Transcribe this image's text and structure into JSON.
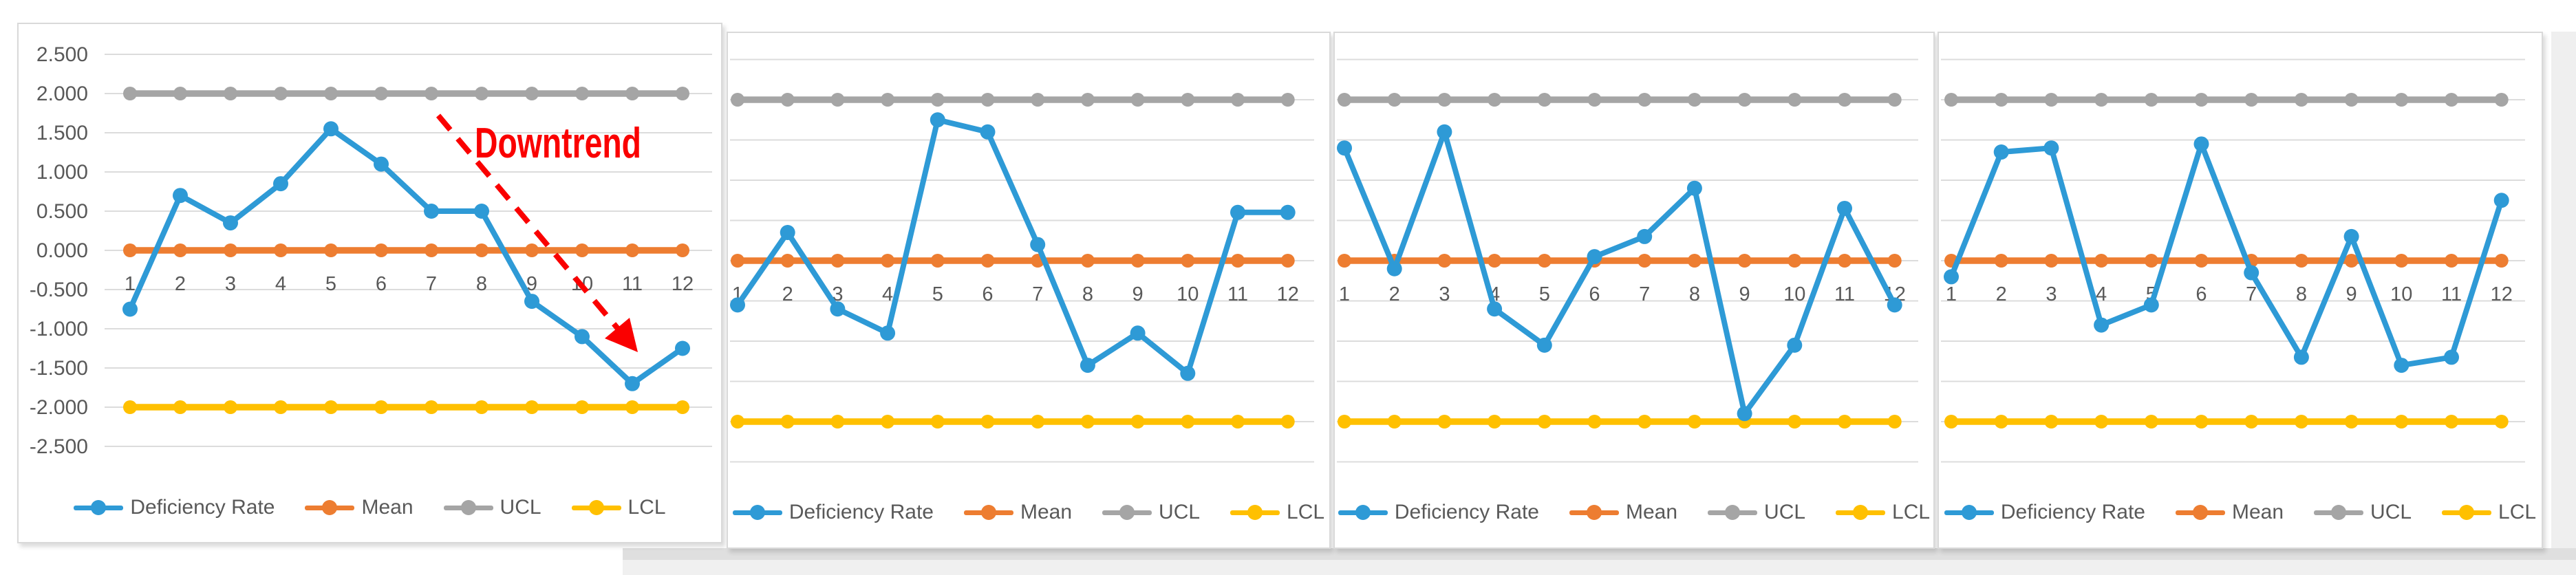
{
  "app": {
    "description": "Four Excel-style statistical process control charts (Deficiency Rate run charts with Mean, UCL, LCL reference lines)",
    "background_color": "#ffffff",
    "sheet_band_color": "#dfdfdf",
    "sheet_band_light_color": "#f0f0f0"
  },
  "colors": {
    "deficiency_rate": "#2e9ad6",
    "mean": "#ed7d31",
    "ucl": "#a5a5a5",
    "lcl": "#ffc000",
    "gridline": "#dcdcdc",
    "axis_text": "#595959",
    "annotation_red": "#fa0000",
    "panel_border": "#d9d9d9"
  },
  "legend": {
    "items": [
      {
        "label": "Deficiency Rate",
        "color": "#2e9ad6"
      },
      {
        "label": "Mean",
        "color": "#ed7d31"
      },
      {
        "label": "UCL",
        "color": "#a5a5a5"
      },
      {
        "label": "LCL",
        "color": "#ffc000"
      }
    ]
  },
  "annotation": {
    "text": "Downtrend",
    "color": "#fa0000"
  },
  "chart_data": [
    {
      "type": "line",
      "title": "",
      "categories": [
        1,
        2,
        3,
        4,
        5,
        6,
        7,
        8,
        9,
        10,
        11,
        12
      ],
      "series": [
        {
          "name": "Deficiency Rate",
          "color": "#2e9ad6",
          "values": [
            -0.75,
            0.7,
            0.35,
            0.85,
            1.55,
            1.1,
            0.5,
            0.5,
            -0.65,
            -1.1,
            -1.7,
            -1.25
          ]
        },
        {
          "name": "Mean",
          "color": "#ed7d31",
          "values": [
            0,
            0,
            0,
            0,
            0,
            0,
            0,
            0,
            0,
            0,
            0,
            0
          ]
        },
        {
          "name": "UCL",
          "color": "#a5a5a5",
          "values": [
            2,
            2,
            2,
            2,
            2,
            2,
            2,
            2,
            2,
            2,
            2,
            2
          ]
        },
        {
          "name": "LCL",
          "color": "#ffc000",
          "values": [
            -2,
            -2,
            -2,
            -2,
            -2,
            -2,
            -2,
            -2,
            -2,
            -2,
            -2,
            -2
          ]
        }
      ],
      "ylim": [
        -2.5,
        2.5
      ],
      "ytick_step": 0.5,
      "yticks": [
        "2.500",
        "2.000",
        "1.500",
        "1.000",
        "0.500",
        "0.000",
        "-0.500",
        "-1.000",
        "-1.500",
        "-2.000",
        "-2.500"
      ],
      "y_axis_labels": true,
      "grid": true,
      "legend_position": "bottom",
      "legend": [
        "Deficiency Rate",
        "Mean",
        "UCL",
        "LCL"
      ],
      "annotation": "Downtrend"
    },
    {
      "type": "line",
      "title": "",
      "categories": [
        1,
        2,
        3,
        4,
        5,
        6,
        7,
        8,
        9,
        10,
        11,
        12
      ],
      "series": [
        {
          "name": "Deficiency Rate",
          "color": "#2e9ad6",
          "values": [
            -0.55,
            0.35,
            -0.6,
            -0.9,
            1.75,
            1.6,
            0.2,
            -1.3,
            -0.9,
            -1.4,
            0.6,
            0.6
          ]
        },
        {
          "name": "Mean",
          "color": "#ed7d31",
          "values": [
            0,
            0,
            0,
            0,
            0,
            0,
            0,
            0,
            0,
            0,
            0,
            0
          ]
        },
        {
          "name": "UCL",
          "color": "#a5a5a5",
          "values": [
            2,
            2,
            2,
            2,
            2,
            2,
            2,
            2,
            2,
            2,
            2,
            2
          ]
        },
        {
          "name": "LCL",
          "color": "#ffc000",
          "values": [
            -2,
            -2,
            -2,
            -2,
            -2,
            -2,
            -2,
            -2,
            -2,
            -2,
            -2,
            -2
          ]
        }
      ],
      "ylim": [
        -2.5,
        2.5
      ],
      "ytick_step": 0.5,
      "yticks": [],
      "y_axis_labels": false,
      "grid": true,
      "legend_position": "bottom",
      "legend": [
        "Deficiency Rate",
        "Mean",
        "UCL",
        "LCL"
      ],
      "annotation": null
    },
    {
      "type": "line",
      "title": "",
      "categories": [
        1,
        2,
        3,
        4,
        5,
        6,
        7,
        8,
        9,
        10,
        11,
        12
      ],
      "series": [
        {
          "name": "Deficiency Rate",
          "color": "#2e9ad6",
          "values": [
            1.4,
            -0.1,
            1.6,
            -0.6,
            -1.05,
            0.05,
            0.3,
            0.9,
            -1.9,
            -1.05,
            0.65,
            -0.55
          ]
        },
        {
          "name": "Mean",
          "color": "#ed7d31",
          "values": [
            0,
            0,
            0,
            0,
            0,
            0,
            0,
            0,
            0,
            0,
            0,
            0
          ]
        },
        {
          "name": "UCL",
          "color": "#a5a5a5",
          "values": [
            2,
            2,
            2,
            2,
            2,
            2,
            2,
            2,
            2,
            2,
            2,
            2
          ]
        },
        {
          "name": "LCL",
          "color": "#ffc000",
          "values": [
            -2,
            -2,
            -2,
            -2,
            -2,
            -2,
            -2,
            -2,
            -2,
            -2,
            -2,
            -2
          ]
        }
      ],
      "ylim": [
        -2.5,
        2.5
      ],
      "ytick_step": 0.5,
      "yticks": [],
      "y_axis_labels": false,
      "grid": true,
      "legend_position": "bottom",
      "legend": [
        "Deficiency Rate",
        "Mean",
        "UCL",
        "LCL"
      ],
      "annotation": null
    },
    {
      "type": "line",
      "title": "",
      "categories": [
        1,
        2,
        3,
        4,
        5,
        6,
        7,
        8,
        9,
        10,
        11,
        12
      ],
      "series": [
        {
          "name": "Deficiency Rate",
          "color": "#2e9ad6",
          "values": [
            -0.2,
            1.35,
            1.4,
            -0.8,
            -0.55,
            1.45,
            -0.15,
            -1.2,
            0.3,
            -1.3,
            -1.2,
            0.75
          ]
        },
        {
          "name": "Mean",
          "color": "#ed7d31",
          "values": [
            0,
            0,
            0,
            0,
            0,
            0,
            0,
            0,
            0,
            0,
            0,
            0
          ]
        },
        {
          "name": "UCL",
          "color": "#a5a5a5",
          "values": [
            2,
            2,
            2,
            2,
            2,
            2,
            2,
            2,
            2,
            2,
            2,
            2
          ]
        },
        {
          "name": "LCL",
          "color": "#ffc000",
          "values": [
            -2,
            -2,
            -2,
            -2,
            -2,
            -2,
            -2,
            -2,
            -2,
            -2,
            -2,
            -2
          ]
        }
      ],
      "ylim": [
        -2.5,
        2.5
      ],
      "ytick_step": 0.5,
      "yticks": [],
      "y_axis_labels": false,
      "grid": true,
      "legend_position": "bottom",
      "legend": [
        "Deficiency Rate",
        "Mean",
        "UCL",
        "LCL"
      ],
      "annotation": null
    }
  ]
}
